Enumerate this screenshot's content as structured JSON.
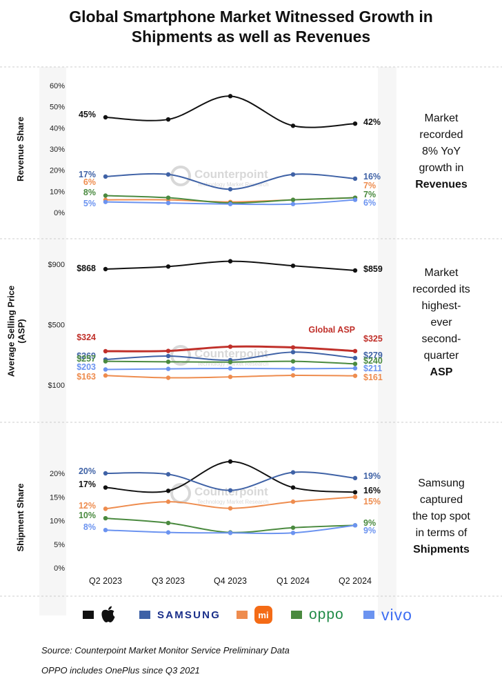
{
  "title_lines": [
    "Global Smartphone Market Witnessed Growth in",
    "Shipments as well as Revenues"
  ],
  "categories": [
    "Q2 2023",
    "Q3 2023",
    "Q4 2023",
    "Q1 2024",
    "Q2 2024"
  ],
  "brands": [
    {
      "key": "apple",
      "legend": "apple-logo",
      "color": "#111111"
    },
    {
      "key": "samsung",
      "legend": "SAMSUNG",
      "color": "#3f62a6"
    },
    {
      "key": "xiaomi",
      "legend": "mi",
      "color": "#ee8c4e"
    },
    {
      "key": "oppo",
      "legend": "oppo",
      "color": "#4a8a3f"
    },
    {
      "key": "vivo",
      "legend": "vivo",
      "color": "#6b93f0"
    }
  ],
  "watermark": {
    "name": "Counterpoint",
    "tagline": "Technology Market Research"
  },
  "chart_data": [
    {
      "type": "line",
      "ylabel": "Revenue Share",
      "ylim": [
        0,
        60
      ],
      "yticks": [
        "0%",
        "10%",
        "20%",
        "30%",
        "40%",
        "50%",
        "60%"
      ],
      "series": [
        {
          "brand": "apple",
          "values": [
            45,
            44,
            55,
            41,
            42
          ],
          "start_label": "45%",
          "end_label": "42%"
        },
        {
          "brand": "samsung",
          "values": [
            17,
            18,
            11,
            18,
            16
          ],
          "start_label": "17%",
          "end_label": "16%"
        },
        {
          "brand": "xiaomi",
          "values": [
            6,
            6,
            5,
            6,
            7
          ],
          "start_label": "6%",
          "end_label": "7%"
        },
        {
          "brand": "oppo",
          "values": [
            8,
            7,
            4.5,
            6,
            7
          ],
          "start_label": "8%",
          "end_label": "7%"
        },
        {
          "brand": "vivo",
          "values": [
            5,
            4.5,
            4,
            4,
            6
          ],
          "start_label": "5%",
          "end_label": "6%"
        }
      ]
    },
    {
      "type": "line",
      "ylabel": "Average Selling Price (ASP)",
      "ylim": [
        100,
        900
      ],
      "yticks": [
        "$100",
        "$500",
        "$900"
      ],
      "series": [
        {
          "brand": "apple",
          "values": [
            868,
            885,
            920,
            890,
            859
          ],
          "start_label": "$868",
          "end_label": "$859"
        },
        {
          "brand": "global",
          "name": "Global ASP",
          "color": "#c0302a",
          "values": [
            324,
            326,
            354,
            349,
            325
          ],
          "start_label": "$324",
          "end_label": "$325"
        },
        {
          "brand": "samsung",
          "values": [
            269,
            292,
            265,
            318,
            279
          ],
          "start_label": "$269",
          "end_label": "$279"
        },
        {
          "brand": "oppo",
          "values": [
            257,
            254,
            252,
            257,
            240
          ],
          "start_label": "$257",
          "end_label": "$240"
        },
        {
          "brand": "vivo",
          "values": [
            203,
            207,
            210,
            208,
            211
          ],
          "start_label": "$203",
          "end_label": "$211"
        },
        {
          "brand": "xiaomi",
          "values": [
            163,
            148,
            154,
            164,
            161
          ],
          "start_label": "$163",
          "end_label": "$161"
        }
      ]
    },
    {
      "type": "line",
      "ylabel": "Shipment Share",
      "ylim": [
        0,
        20
      ],
      "yticks": [
        "0%",
        "5%",
        "10%",
        "15%",
        "20%"
      ],
      "series": [
        {
          "brand": "apple",
          "values": [
            17,
            16.3,
            22.5,
            17,
            16
          ],
          "start_label": "17%",
          "end_label": "16%"
        },
        {
          "brand": "samsung",
          "values": [
            20,
            19.8,
            16.4,
            20.2,
            19
          ],
          "start_label": "20%",
          "end_label": "19%"
        },
        {
          "brand": "xiaomi",
          "values": [
            12.5,
            14,
            12.6,
            14,
            15
          ],
          "start_label": "12%",
          "end_label": "15%"
        },
        {
          "brand": "oppo",
          "values": [
            10.5,
            9.5,
            7.5,
            8.5,
            9
          ],
          "start_label": "10%",
          "end_label": "9%"
        },
        {
          "brand": "vivo",
          "values": [
            8,
            7.5,
            7.4,
            7.4,
            9
          ],
          "start_label": "8%",
          "end_label": "9%"
        }
      ]
    }
  ],
  "right_notes": [
    {
      "lines": [
        "Market",
        "recorded",
        "8% YoY",
        "growth in"
      ],
      "bold": "Revenues"
    },
    {
      "lines": [
        "Market",
        "recorded its",
        "highest-",
        "ever",
        "second-",
        "quarter"
      ],
      "bold": "ASP"
    },
    {
      "lines": [
        "Samsung",
        "captured",
        "the top spot",
        "in terms of"
      ],
      "bold": "Shipments"
    }
  ],
  "footer": [
    "Source: Counterpoint Market Monitor Service Preliminary Data",
    "OPPO includes OnePlus since Q3 2021"
  ]
}
